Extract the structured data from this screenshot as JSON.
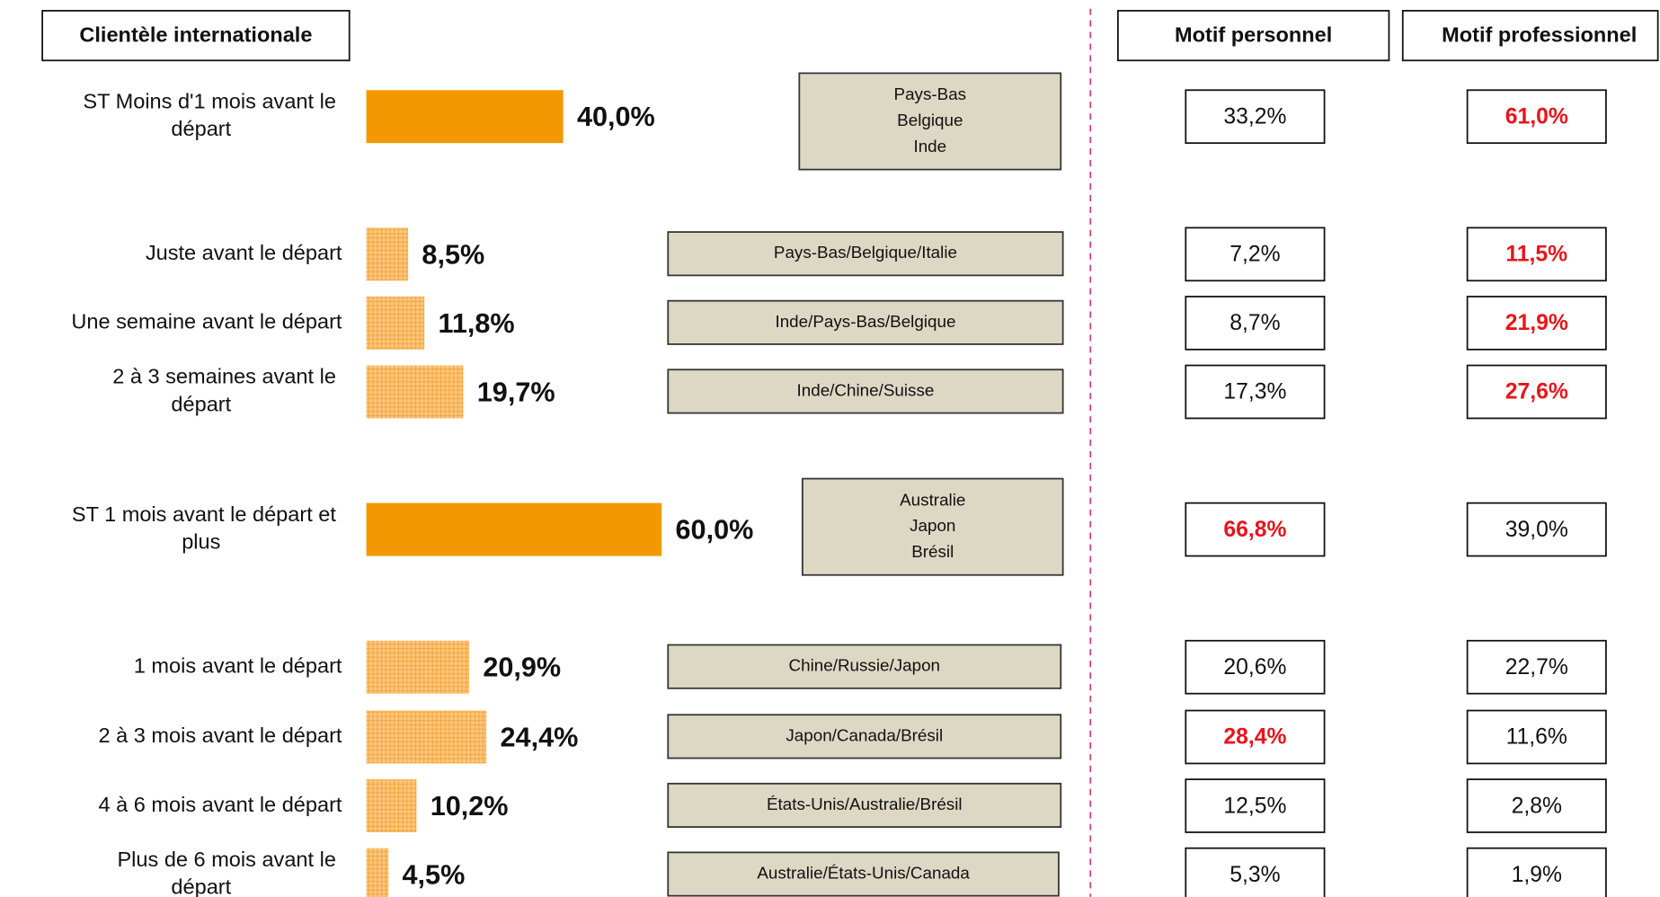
{
  "chart_data": {
    "type": "bar",
    "title": "Clientèle internationale",
    "categories": [
      "ST Moins d'1 mois avant le départ",
      "Juste avant le départ",
      "Une semaine avant le départ",
      "2 à 3 semaines avant le départ",
      "ST 1 mois avant le départ et plus",
      "1 mois avant le départ",
      "2 à 3 mois avant le départ",
      "4 à 6 mois avant le départ",
      "Plus de 6 mois avant le départ"
    ],
    "values": [
      40.0,
      8.5,
      11.8,
      19.7,
      60.0,
      20.9,
      24.4,
      10.2,
      4.5
    ],
    "value_labels": [
      "40,0%",
      "8,5%",
      "11,8%",
      "19,7%",
      "60,0%",
      "20,9%",
      "24,4%",
      "10,2%",
      "4,5%"
    ],
    "styles": [
      "solid",
      "hatched",
      "hatched",
      "hatched",
      "solid",
      "hatched",
      "hatched",
      "hatched",
      "hatched"
    ],
    "color": "#f39800",
    "hatch_color": "#fbc77d",
    "countries": [
      [
        "Pays-Bas",
        "Belgique",
        "Inde"
      ],
      [
        "Pays-Bas/Belgique/Italie"
      ],
      [
        "Inde/Pays-Bas/Belgique"
      ],
      [
        "Inde/Chine/Suisse"
      ],
      [
        "Australie",
        "Japon",
        "Brésil"
      ],
      [
        "Chine/Russie/Japon"
      ],
      [
        "Japon/Canada/Brésil"
      ],
      [
        "États-Unis/Australie/Brésil"
      ],
      [
        "Australie/États-Unis/Canada"
      ]
    ],
    "highlight_color": "#e8141b",
    "series": [
      {
        "name": "Motif personnel",
        "values": [
          33.2,
          7.2,
          8.7,
          17.3,
          66.8,
          20.6,
          28.4,
          12.5,
          5.3
        ],
        "value_labels": [
          "33,2%",
          "7,2%",
          "8,7%",
          "17,3%",
          "66,8%",
          "20,6%",
          "28,4%",
          "12,5%",
          "5,3%"
        ],
        "highlighted": [
          4,
          6
        ]
      },
      {
        "name": "Motif professionnel",
        "values": [
          61.0,
          11.5,
          21.9,
          27.6,
          39.0,
          22.7,
          11.6,
          2.8,
          1.9
        ],
        "value_labels": [
          "61,0%",
          "11,5%",
          "21,9%",
          "27,6%",
          "39,0%",
          "22,7%",
          "11,6%",
          "2,8%",
          "1,9%"
        ],
        "highlighted": [
          0,
          1,
          2,
          3
        ]
      }
    ]
  }
}
